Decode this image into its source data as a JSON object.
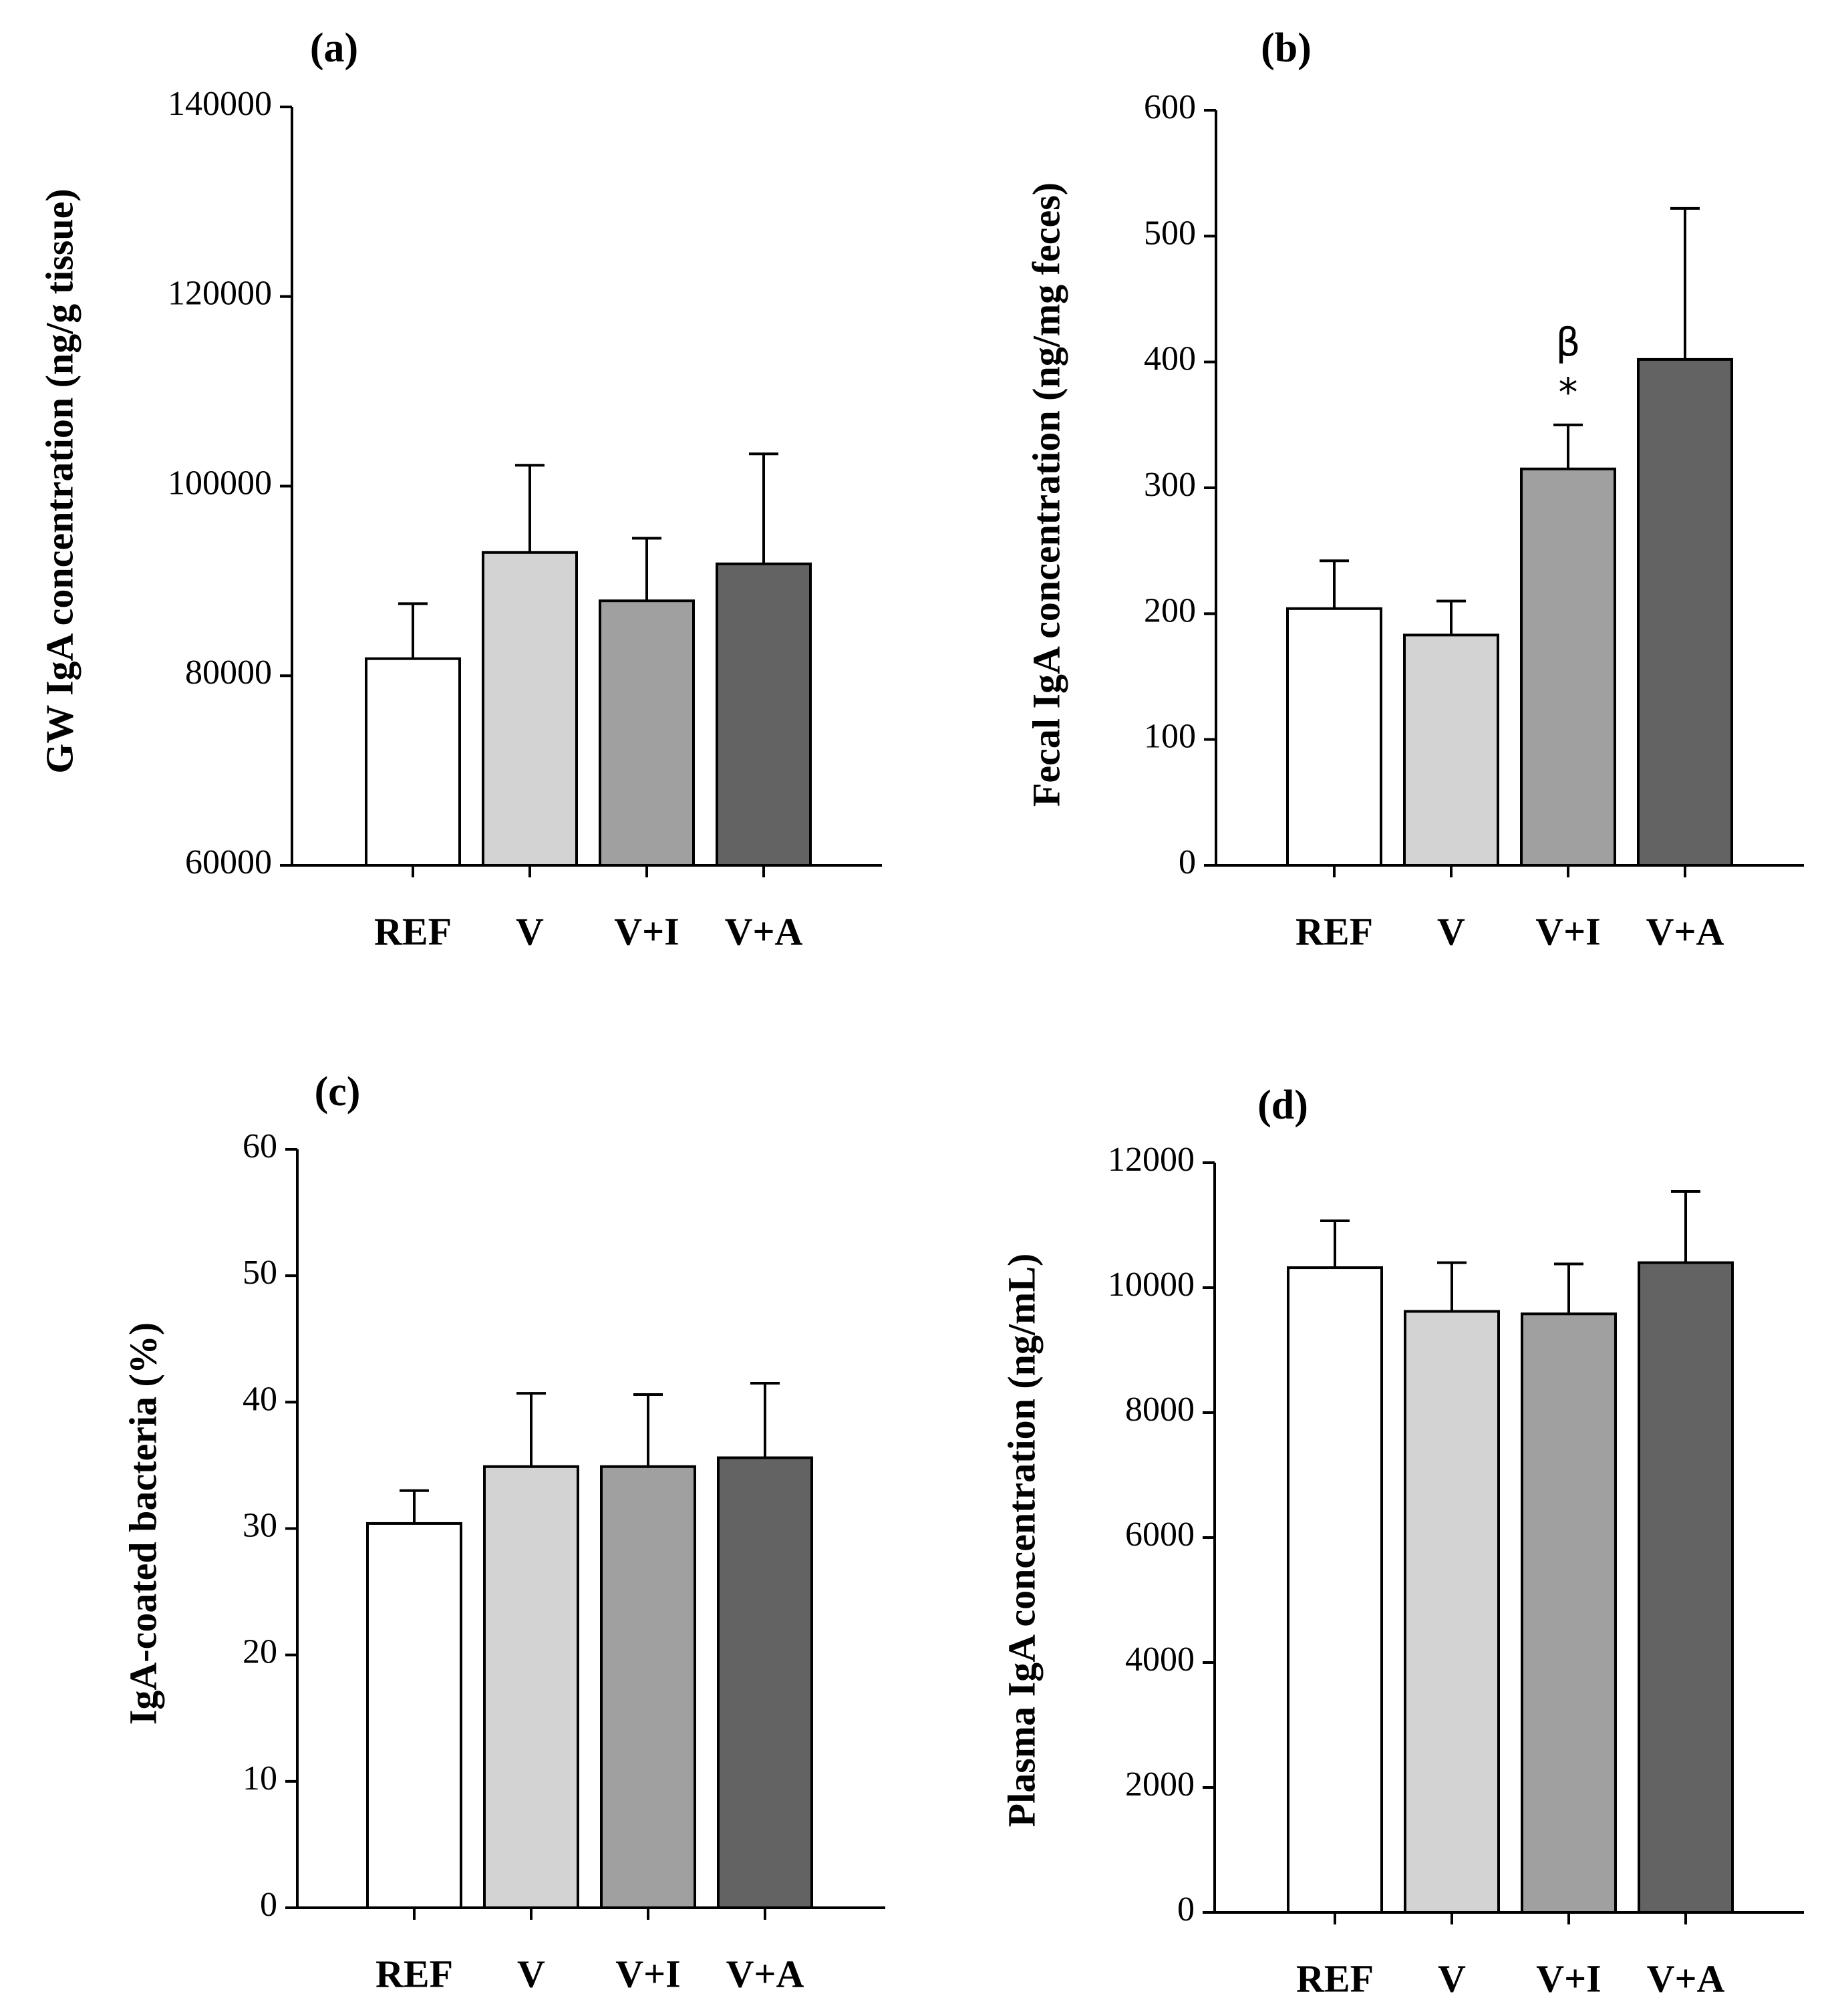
{
  "chart_data": [
    {
      "type": "bar",
      "panel": "(a)",
      "categories": [
        "REF",
        "V",
        "V+I",
        "V+A"
      ],
      "values": [
        81800,
        93000,
        87900,
        91800
      ],
      "errors": [
        5800,
        9200,
        6600,
        11600
      ],
      "ylabel": "GW IgA concentration (ng/g tissue)",
      "ylim": [
        60000,
        140000
      ],
      "yticks": [
        60000,
        80000,
        100000,
        120000,
        140000
      ],
      "colors": [
        "#ffffff",
        "#d3d3d3",
        "#a0a0a0",
        "#636363"
      ],
      "annotations": []
    },
    {
      "type": "bar",
      "panel": "(b)",
      "categories": [
        "REF",
        "V",
        "V+I",
        "V+A"
      ],
      "values": [
        204,
        183,
        315,
        402
      ],
      "errors": [
        38,
        27,
        35,
        120
      ],
      "ylabel": "Fecal IgA concentration (ng/mg feces)",
      "ylim": [
        0,
        600
      ],
      "yticks": [
        0,
        100,
        200,
        300,
        400,
        500,
        600
      ],
      "colors": [
        "#ffffff",
        "#d3d3d3",
        "#a0a0a0",
        "#636363"
      ],
      "annotations": [
        {
          "category": "V+I",
          "text": "*"
        },
        {
          "category": "V+I",
          "text": "β"
        }
      ]
    },
    {
      "type": "bar",
      "panel": "(c)",
      "categories": [
        "REF",
        "V",
        "V+I",
        "V+A"
      ],
      "values": [
        30.4,
        34.9,
        34.9,
        35.6
      ],
      "errors": [
        2.6,
        5.8,
        5.7,
        5.9
      ],
      "ylabel": "IgA-coated bacteria (%)",
      "ylim": [
        0,
        60
      ],
      "yticks": [
        0,
        10,
        20,
        30,
        40,
        50,
        60
      ],
      "colors": [
        "#ffffff",
        "#d3d3d3",
        "#a0a0a0",
        "#636363"
      ],
      "annotations": []
    },
    {
      "type": "bar",
      "panel": "(d)",
      "categories": [
        "REF",
        "V",
        "V+I",
        "V+A"
      ],
      "values": [
        10320,
        9620,
        9580,
        10400
      ],
      "errors": [
        750,
        780,
        800,
        1140
      ],
      "ylabel": "Plasma IgA concentration (ng/mL)",
      "ylim": [
        0,
        12000
      ],
      "yticks": [
        0,
        2000,
        4000,
        6000,
        8000,
        10000,
        12000
      ],
      "colors": [
        "#ffffff",
        "#d3d3d3",
        "#a0a0a0",
        "#636363"
      ],
      "annotations": []
    }
  ]
}
